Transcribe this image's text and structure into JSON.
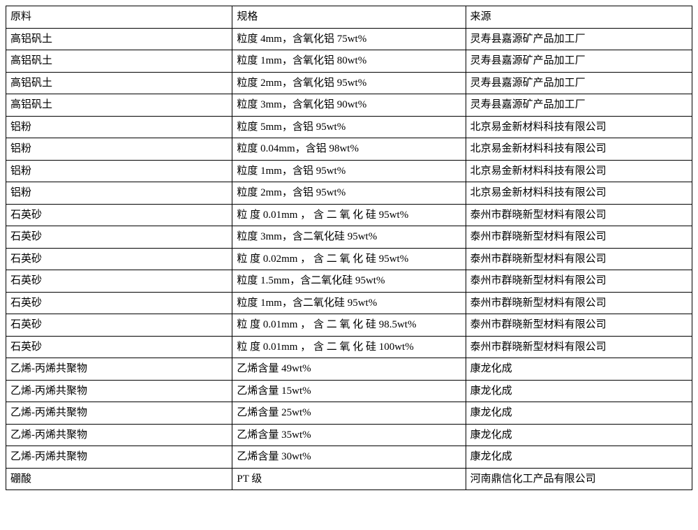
{
  "table": {
    "columns": [
      "原料",
      "规格",
      "来源"
    ],
    "rows": [
      [
        "高铝矾土",
        "粒度 4mm，含氧化铝 75wt%",
        "灵寿县嘉源矿产品加工厂"
      ],
      [
        "高铝矾土",
        "粒度 1mm，含氧化铝 80wt%",
        "灵寿县嘉源矿产品加工厂"
      ],
      [
        "高铝矾土",
        "粒度 2mm，含氧化铝 95wt%",
        "灵寿县嘉源矿产品加工厂"
      ],
      [
        "高铝矾土",
        "粒度 3mm，含氧化铝 90wt%",
        "灵寿县嘉源矿产品加工厂"
      ],
      [
        "铝粉",
        "粒度 5mm，含铝 95wt%",
        "北京易金新材料科技有限公司"
      ],
      [
        "铝粉",
        "粒度 0.04mm，含铝 98wt%",
        "北京易金新材料科技有限公司"
      ],
      [
        "铝粉",
        "粒度 1mm，含铝 95wt%",
        "北京易金新材料科技有限公司"
      ],
      [
        "铝粉",
        "粒度 2mm，含铝 95wt%",
        "北京易金新材料科技有限公司"
      ],
      [
        "石英砂",
        "粒 度  0.01mm ， 含 二 氧 化 硅 95wt%",
        "泰州市群晓新型材料有限公司"
      ],
      [
        "石英砂",
        "粒度 3mm，含二氧化硅 95wt%",
        "泰州市群晓新型材料有限公司"
      ],
      [
        "石英砂",
        "粒 度  0.02mm ， 含 二 氧 化 硅 95wt%",
        "泰州市群晓新型材料有限公司"
      ],
      [
        "石英砂",
        "粒度 1.5mm，含二氧化硅 95wt%",
        "泰州市群晓新型材料有限公司"
      ],
      [
        "石英砂",
        "粒度 1mm，含二氧化硅 95wt%",
        "泰州市群晓新型材料有限公司"
      ],
      [
        "石英砂",
        "粒 度  0.01mm ， 含 二 氧 化 硅 98.5wt%",
        "泰州市群晓新型材料有限公司"
      ],
      [
        "石英砂",
        "粒 度  0.01mm ， 含 二 氧 化 硅 100wt%",
        "泰州市群晓新型材料有限公司"
      ],
      [
        "乙烯-丙烯共聚物",
        "乙烯含量 49wt%",
        "康龙化成"
      ],
      [
        "乙烯-丙烯共聚物",
        "乙烯含量 15wt%",
        "康龙化成"
      ],
      [
        "乙烯-丙烯共聚物",
        "乙烯含量 25wt%",
        "康龙化成"
      ],
      [
        "乙烯-丙烯共聚物",
        "乙烯含量 35wt%",
        "康龙化成"
      ],
      [
        "乙烯-丙烯共聚物",
        "乙烯含量 30wt%",
        "康龙化成"
      ],
      [
        "硼酸",
        "PT 级",
        "河南鼎信化工产品有限公司"
      ]
    ],
    "border_color": "#000000",
    "text_color": "#000000",
    "background_color": "#ffffff",
    "font_size": 15,
    "column_widths": [
      "33%",
      "34%",
      "33%"
    ]
  }
}
